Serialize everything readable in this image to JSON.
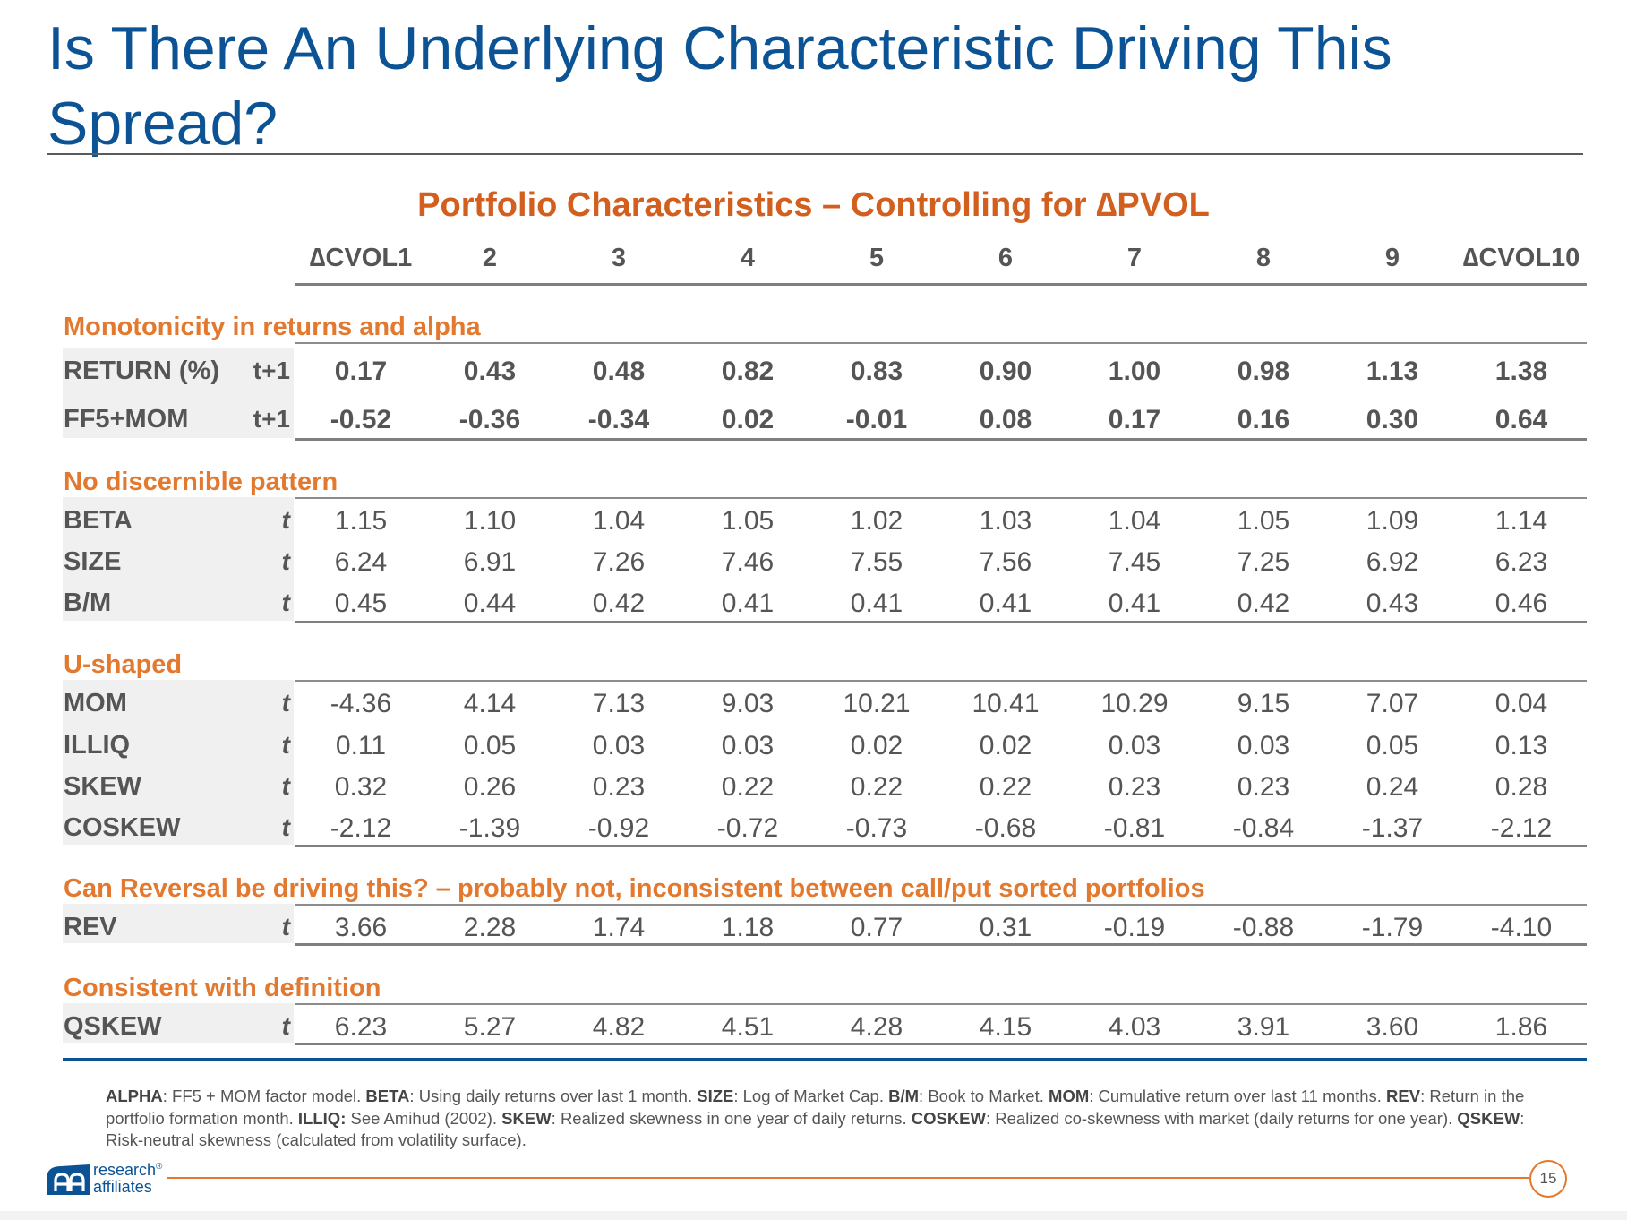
{
  "title": "Is There An Underlying Characteristic Driving This Spread?",
  "table_title": "Portfolio Characteristics – Controlling for ∆PVOL",
  "columns": [
    "∆CVOL1",
    "2",
    "3",
    "4",
    "5",
    "6",
    "7",
    "8",
    "9",
    "∆CVOL10"
  ],
  "sections": [
    {
      "heading": "Monotonicity in returns and alpha",
      "rows": [
        {
          "label": "RETURN (%)",
          "sub": "t+1",
          "values": [
            "0.17",
            "0.43",
            "0.48",
            "0.82",
            "0.83",
            "0.90",
            "1.00",
            "0.98",
            "1.13",
            "1.38"
          ]
        },
        {
          "label": "FF5+MOM",
          "sub": "t+1",
          "values": [
            "-0.52",
            "-0.36",
            "-0.34",
            "0.02",
            "-0.01",
            "0.08",
            "0.17",
            "0.16",
            "0.30",
            "0.64"
          ]
        }
      ]
    },
    {
      "heading": "No discernible pattern",
      "rows": [
        {
          "label": "BETA",
          "sub": "t",
          "values": [
            "1.15",
            "1.10",
            "1.04",
            "1.05",
            "1.02",
            "1.03",
            "1.04",
            "1.05",
            "1.09",
            "1.14"
          ]
        },
        {
          "label": "SIZE",
          "sub": "t",
          "values": [
            "6.24",
            "6.91",
            "7.26",
            "7.46",
            "7.55",
            "7.56",
            "7.45",
            "7.25",
            "6.92",
            "6.23"
          ]
        },
        {
          "label": "B/M",
          "sub": "t",
          "values": [
            "0.45",
            "0.44",
            "0.42",
            "0.41",
            "0.41",
            "0.41",
            "0.41",
            "0.42",
            "0.43",
            "0.46"
          ]
        }
      ]
    },
    {
      "heading": "U-shaped",
      "rows": [
        {
          "label": "MOM",
          "sub": "t",
          "values": [
            "-4.36",
            "4.14",
            "7.13",
            "9.03",
            "10.21",
            "10.41",
            "10.29",
            "9.15",
            "7.07",
            "0.04"
          ]
        },
        {
          "label": "ILLIQ",
          "sub": "t",
          "values": [
            "0.11",
            "0.05",
            "0.03",
            "0.03",
            "0.02",
            "0.02",
            "0.03",
            "0.03",
            "0.05",
            "0.13"
          ]
        },
        {
          "label": "SKEW",
          "sub": "t",
          "values": [
            "0.32",
            "0.26",
            "0.23",
            "0.22",
            "0.22",
            "0.22",
            "0.23",
            "0.23",
            "0.24",
            "0.28"
          ]
        },
        {
          "label": "COSKEW",
          "sub": "t",
          "values": [
            "-2.12",
            "-1.39",
            "-0.92",
            "-0.72",
            "-0.73",
            "-0.68",
            "-0.81",
            "-0.84",
            "-1.37",
            "-2.12"
          ]
        }
      ]
    },
    {
      "heading": "Can Reversal be driving this? – probably not, inconsistent between call/put sorted portfolios",
      "rows": [
        {
          "label": "REV",
          "sub": "t",
          "values": [
            "3.66",
            "2.28",
            "1.74",
            "1.18",
            "0.77",
            "0.31",
            "-0.19",
            "-0.88",
            "-1.79",
            "-4.10"
          ]
        }
      ]
    },
    {
      "heading": "Consistent with definition",
      "rows": [
        {
          "label": "QSKEW",
          "sub": "t",
          "values": [
            "6.23",
            "5.27",
            "4.82",
            "4.51",
            "4.28",
            "4.15",
            "4.03",
            "3.91",
            "3.60",
            "1.86"
          ]
        }
      ]
    }
  ],
  "footnote": [
    {
      "term": "ALPHA",
      "def": ": FF5 + MOM factor model. "
    },
    {
      "term": "BETA",
      "def": ": Using daily returns over last 1 month. "
    },
    {
      "term": "SIZE",
      "def": ": Log of Market Cap. "
    },
    {
      "term": "B/M",
      "def": ": Book to Market. "
    },
    {
      "term": "MOM",
      "def": ": Cumulative return over last 11 months. "
    },
    {
      "term": "REV",
      "def": ": Return in the portfolio formation month. "
    },
    {
      "term": "ILLIQ:",
      "def": " See Amihud (2002). "
    },
    {
      "term": "SKEW",
      "def": ": Realized skewness in one year of daily returns. "
    },
    {
      "term": "COSKEW",
      "def": ": Realized co-skewness with market (daily returns for one year). "
    },
    {
      "term": "QSKEW",
      "def": ": Risk-neutral skewness (calculated from volatility surface)."
    }
  ],
  "logo": {
    "line1": "research",
    "line2": "affiliates",
    "mark": "®"
  },
  "page_number": "15",
  "colors": {
    "title_blue": "#0b5394",
    "accent_orange": "#e2792f",
    "text_gray": "#555555"
  }
}
